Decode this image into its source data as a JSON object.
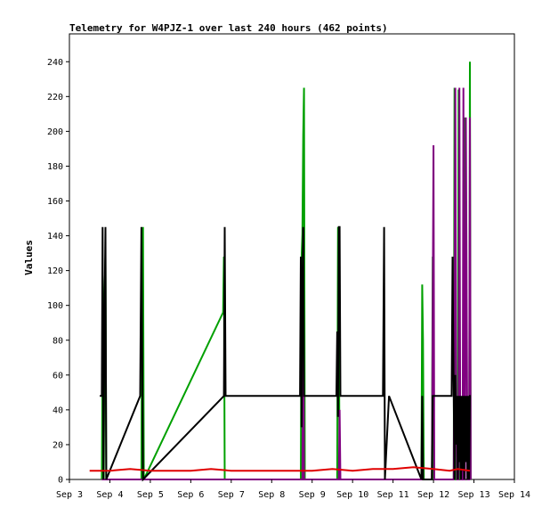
{
  "chart_data": {
    "type": "line",
    "title": "Telemetry for W4PJZ-1 over last 240 hours (462 points)",
    "xlabel": "",
    "ylabel": "Values",
    "x_unit": "day (September)",
    "xlim": [
      3,
      14
    ],
    "ylim": [
      0,
      256
    ],
    "y_ticks": [
      0,
      20,
      40,
      60,
      80,
      100,
      120,
      140,
      160,
      180,
      200,
      220,
      240
    ],
    "x_ticks": [
      {
        "value": 3,
        "label": "Sep 3"
      },
      {
        "value": 4,
        "label": "Sep 4"
      },
      {
        "value": 5,
        "label": "Sep 5"
      },
      {
        "value": 6,
        "label": "Sep 6"
      },
      {
        "value": 7,
        "label": "Sep 7"
      },
      {
        "value": 8,
        "label": "Sep 8"
      },
      {
        "value": 9,
        "label": "Sep 9"
      },
      {
        "value": 10,
        "label": "Sep 10"
      },
      {
        "value": 11,
        "label": "Sep 11"
      },
      {
        "value": 12,
        "label": "Sep 12"
      },
      {
        "value": 13,
        "label": "Sep 13"
      },
      {
        "value": 14,
        "label": "Sep 14"
      }
    ],
    "grid": false,
    "legend": "none",
    "series": [
      {
        "color": "#00a000",
        "points": [
          [
            3.8,
            0
          ],
          [
            3.82,
            72
          ],
          [
            3.85,
            0
          ],
          [
            3.87,
            107
          ],
          [
            3.89,
            128
          ],
          [
            3.91,
            0
          ],
          [
            4.78,
            0
          ],
          [
            4.8,
            128
          ],
          [
            4.82,
            145
          ],
          [
            4.84,
            0
          ],
          [
            6.8,
            96
          ],
          [
            6.82,
            128
          ],
          [
            6.84,
            0
          ],
          [
            8.72,
            0
          ],
          [
            8.74,
            128
          ],
          [
            8.76,
            141
          ],
          [
            8.78,
            197
          ],
          [
            8.8,
            225
          ],
          [
            8.82,
            0
          ],
          [
            9.62,
            0
          ],
          [
            9.64,
            145
          ],
          [
            9.66,
            96
          ],
          [
            9.68,
            0
          ],
          [
            11.7,
            0
          ],
          [
            11.72,
            112
          ],
          [
            11.74,
            80
          ],
          [
            11.76,
            0
          ],
          [
            11.96,
            0
          ],
          [
            11.98,
            128
          ],
          [
            12.0,
            0
          ],
          [
            12.5,
            0
          ],
          [
            12.52,
            225
          ],
          [
            12.54,
            0
          ],
          [
            12.6,
            0
          ],
          [
            12.62,
            224
          ],
          [
            12.64,
            0
          ],
          [
            12.74,
            0
          ],
          [
            12.76,
            208
          ],
          [
            12.78,
            0
          ],
          [
            12.88,
            0
          ],
          [
            12.9,
            240
          ],
          [
            12.92,
            0
          ]
        ]
      },
      {
        "color": "#800080",
        "points": [
          [
            3.8,
            0
          ],
          [
            6.8,
            0
          ],
          [
            8.72,
            0
          ],
          [
            8.76,
            0
          ],
          [
            8.78,
            144
          ],
          [
            8.8,
            0
          ],
          [
            9.62,
            0
          ],
          [
            9.66,
            0
          ],
          [
            9.68,
            40
          ],
          [
            9.7,
            0
          ],
          [
            11.96,
            0
          ],
          [
            12.0,
            192
          ],
          [
            12.02,
            0
          ],
          [
            12.5,
            0
          ],
          [
            12.54,
            225
          ],
          [
            12.56,
            60
          ],
          [
            12.58,
            0
          ],
          [
            12.62,
            0
          ],
          [
            12.64,
            225
          ],
          [
            12.66,
            40
          ],
          [
            12.68,
            0
          ],
          [
            12.72,
            0
          ],
          [
            12.74,
            225
          ],
          [
            12.76,
            0
          ],
          [
            12.78,
            0
          ],
          [
            12.8,
            208
          ],
          [
            12.82,
            104
          ],
          [
            12.84,
            0
          ],
          [
            12.88,
            0
          ],
          [
            12.9,
            208
          ],
          [
            12.92,
            0
          ]
        ]
      },
      {
        "color": "#000000",
        "points": [
          [
            3.75,
            48
          ],
          [
            3.8,
            48
          ],
          [
            3.82,
            145
          ],
          [
            3.84,
            0
          ],
          [
            3.87,
            96
          ],
          [
            3.89,
            145
          ],
          [
            3.91,
            0
          ],
          [
            4.75,
            48
          ],
          [
            4.78,
            145
          ],
          [
            4.82,
            0
          ],
          [
            6.82,
            48
          ],
          [
            6.84,
            145
          ],
          [
            6.86,
            48
          ],
          [
            8.7,
            48
          ],
          [
            8.72,
            128
          ],
          [
            8.74,
            30
          ],
          [
            8.76,
            112
          ],
          [
            8.78,
            145
          ],
          [
            8.8,
            48
          ],
          [
            9.6,
            48
          ],
          [
            9.62,
            85
          ],
          [
            9.64,
            36
          ],
          [
            9.66,
            145
          ],
          [
            9.68,
            145
          ],
          [
            9.7,
            48
          ],
          [
            10.75,
            48
          ],
          [
            10.78,
            145
          ],
          [
            10.8,
            0
          ],
          [
            10.9,
            48
          ],
          [
            11.7,
            0
          ],
          [
            11.72,
            48
          ],
          [
            11.74,
            0
          ],
          [
            11.96,
            0
          ],
          [
            11.98,
            48
          ],
          [
            12.0,
            48
          ],
          [
            12.45,
            48
          ],
          [
            12.47,
            128
          ],
          [
            12.5,
            48
          ],
          [
            12.52,
            0
          ],
          [
            12.54,
            60
          ],
          [
            12.56,
            20
          ],
          [
            12.58,
            48
          ],
          [
            12.6,
            0
          ],
          [
            12.62,
            48
          ],
          [
            12.64,
            10
          ],
          [
            12.66,
            48
          ],
          [
            12.68,
            0
          ],
          [
            12.7,
            48
          ],
          [
            12.72,
            5
          ],
          [
            12.74,
            48
          ],
          [
            12.76,
            0
          ],
          [
            12.78,
            48
          ],
          [
            12.8,
            10
          ],
          [
            12.82,
            48
          ],
          [
            12.84,
            0
          ],
          [
            12.86,
            48
          ],
          [
            12.88,
            0
          ],
          [
            12.9,
            48
          ],
          [
            12.92,
            48
          ]
        ]
      },
      {
        "color": "#e00000",
        "points": [
          [
            3.5,
            5
          ],
          [
            4,
            5
          ],
          [
            4.5,
            6
          ],
          [
            5,
            5
          ],
          [
            6,
            5
          ],
          [
            6.5,
            6
          ],
          [
            7,
            5
          ],
          [
            8,
            5
          ],
          [
            9,
            5
          ],
          [
            9.5,
            6
          ],
          [
            10,
            5
          ],
          [
            10.5,
            6
          ],
          [
            11,
            6
          ],
          [
            11.5,
            7
          ],
          [
            12,
            6
          ],
          [
            12.4,
            5
          ],
          [
            12.6,
            6
          ],
          [
            12.9,
            5
          ]
        ]
      }
    ]
  }
}
